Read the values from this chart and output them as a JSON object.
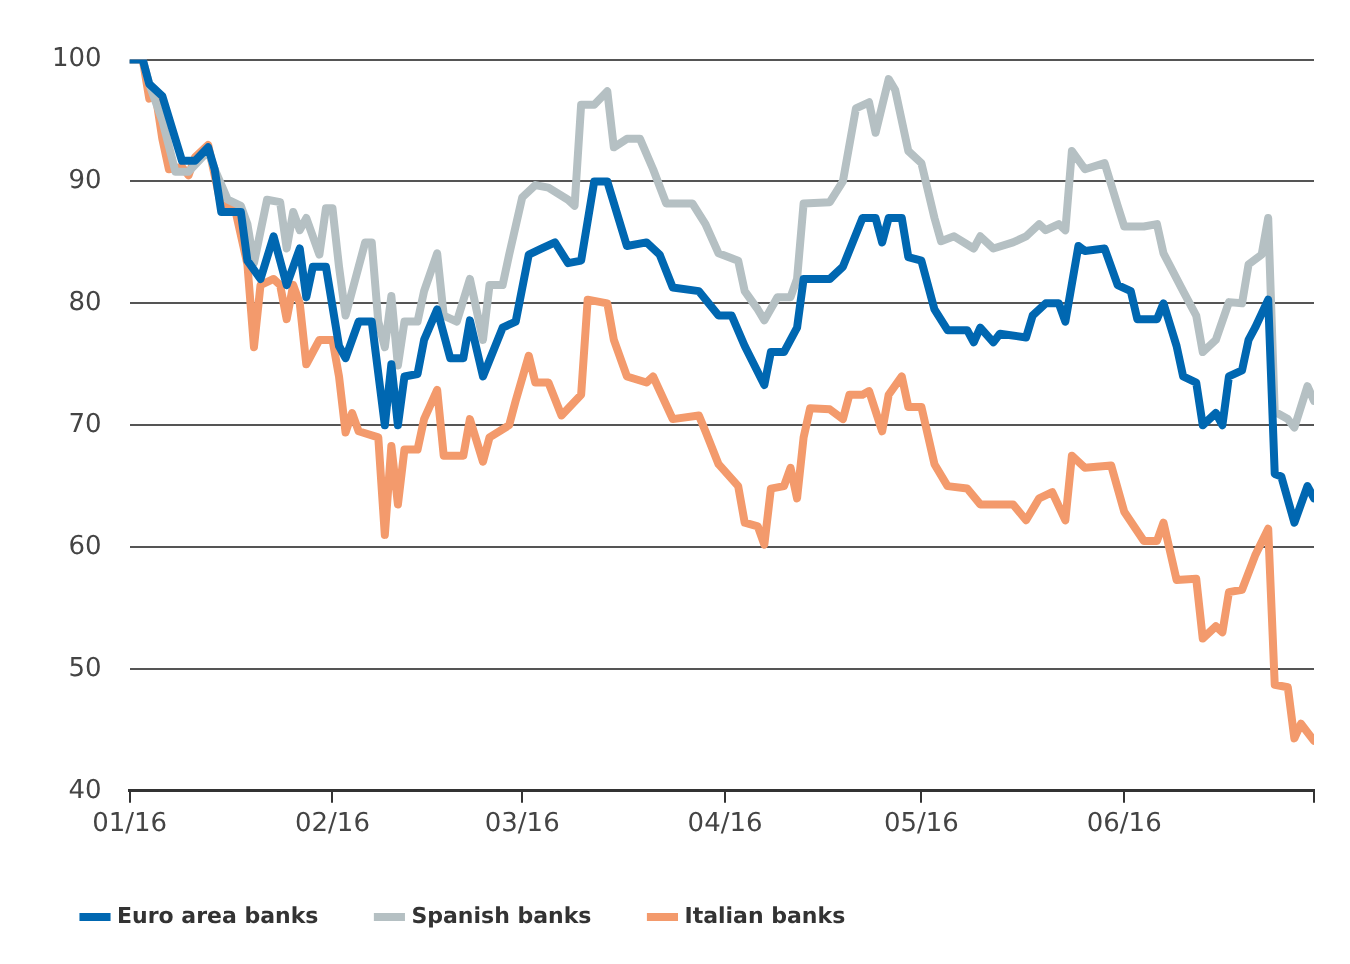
{
  "chart_data": {
    "type": "line",
    "xlim": [
      "2016-01-01",
      "2016-06-30"
    ],
    "xticks": [
      {
        "value": "2016-01-01",
        "label": "01/16"
      },
      {
        "value": "2016-02-01",
        "label": "02/16"
      },
      {
        "value": "2016-03-01",
        "label": "03/16"
      },
      {
        "value": "2016-04-01",
        "label": "04/16"
      },
      {
        "value": "2016-05-01",
        "label": "05/16"
      },
      {
        "value": "2016-06-01",
        "label": "06/16"
      },
      {
        "value": "2016-06-30",
        "label": null
      }
    ],
    "ylim": [
      40,
      100
    ],
    "yticks": [
      40,
      50,
      60,
      70,
      80,
      90,
      100
    ],
    "grid": "y",
    "legend": "bottom",
    "line_style": "solid",
    "series": [
      {
        "name": "Euro area banks",
        "color": "#0067b1",
        "x": [
          "2016-01-01",
          "2016-01-03",
          "2016-01-04",
          "2016-01-06",
          "2016-01-09",
          "2016-01-11",
          "2016-01-13",
          "2016-01-14",
          "2016-01-15",
          "2016-01-18",
          "2016-01-19",
          "2016-01-21",
          "2016-01-23",
          "2016-01-25",
          "2016-01-27",
          "2016-01-28",
          "2016-01-29",
          "2016-01-31",
          "2016-02-02",
          "2016-02-03",
          "2016-02-05",
          "2016-02-07",
          "2016-02-09",
          "2016-02-10",
          "2016-02-11",
          "2016-02-12",
          "2016-02-14",
          "2016-02-15",
          "2016-02-17",
          "2016-02-19",
          "2016-02-21",
          "2016-02-22",
          "2016-02-24",
          "2016-02-27",
          "2016-02-29",
          "2016-03-02",
          "2016-03-04",
          "2016-03-06",
          "2016-03-08",
          "2016-03-10",
          "2016-03-12",
          "2016-03-14",
          "2016-03-17",
          "2016-03-20",
          "2016-03-22",
          "2016-03-24",
          "2016-03-28",
          "2016-03-31",
          "2016-04-02",
          "2016-04-04",
          "2016-04-07",
          "2016-04-08",
          "2016-04-10",
          "2016-04-12",
          "2016-04-13",
          "2016-04-17",
          "2016-04-19",
          "2016-04-22",
          "2016-04-24",
          "2016-04-25",
          "2016-04-26",
          "2016-04-28",
          "2016-04-29",
          "2016-05-01",
          "2016-05-03",
          "2016-05-05",
          "2016-05-08",
          "2016-05-09",
          "2016-05-10",
          "2016-05-12",
          "2016-05-13",
          "2016-05-17",
          "2016-05-18",
          "2016-05-20",
          "2016-05-22",
          "2016-05-23",
          "2016-05-25",
          "2016-05-26",
          "2016-05-29",
          "2016-05-31",
          "2016-06-02",
          "2016-06-03",
          "2016-06-06",
          "2016-06-07",
          "2016-06-09",
          "2016-06-10",
          "2016-06-12",
          "2016-06-13",
          "2016-06-15",
          "2016-06-16",
          "2016-06-17",
          "2016-06-19",
          "2016-06-20",
          "2016-06-21",
          "2016-06-23",
          "2016-06-24",
          "2016-06-25",
          "2016-06-27",
          "2016-06-29",
          "2016-06-30"
        ],
        "values": [
          100,
          100,
          98,
          97,
          91.7,
          91.7,
          92.8,
          91,
          87.5,
          87.5,
          83.5,
          82,
          85.5,
          81.5,
          84.5,
          80.5,
          83,
          83,
          76.5,
          75.5,
          78.5,
          78.5,
          70,
          75,
          70,
          74,
          74.2,
          77,
          79.5,
          75.5,
          75.5,
          78.6,
          74,
          78,
          78.5,
          84,
          84.5,
          85,
          83.3,
          83.5,
          90,
          90,
          84.7,
          85,
          84,
          81.3,
          81,
          79,
          79,
          76.5,
          73.3,
          76,
          76,
          78,
          82,
          82,
          83,
          87,
          87,
          85,
          87,
          87,
          83.8,
          83.5,
          79.5,
          77.8,
          77.8,
          76.8,
          78,
          76.8,
          77.5,
          77.2,
          79,
          80,
          80,
          78.5,
          84.7,
          84.3,
          84.5,
          81.5,
          81,
          78.7,
          78.7,
          80,
          76.5,
          74,
          73.5,
          70,
          71,
          70,
          74,
          74.5,
          77,
          78,
          80.3,
          66,
          65.8,
          62,
          65,
          64
        ]
      },
      {
        "name": "Spanish banks",
        "color": "#b5c0c3",
        "x": [
          "2016-01-01",
          "2016-01-03",
          "2016-01-04",
          "2016-01-06",
          "2016-01-08",
          "2016-01-10",
          "2016-01-13",
          "2016-01-14",
          "2016-01-16",
          "2016-01-18",
          "2016-01-19",
          "2016-01-20",
          "2016-01-22",
          "2016-01-24",
          "2016-01-25",
          "2016-01-26",
          "2016-01-27",
          "2016-01-28",
          "2016-01-30",
          "2016-01-31",
          "2016-02-01",
          "2016-02-02",
          "2016-02-03",
          "2016-02-05",
          "2016-02-06",
          "2016-02-07",
          "2016-02-08",
          "2016-02-09",
          "2016-02-10",
          "2016-02-11",
          "2016-02-12",
          "2016-02-14",
          "2016-02-15",
          "2016-02-17",
          "2016-02-18",
          "2016-02-20",
          "2016-02-22",
          "2016-02-24",
          "2016-02-25",
          "2016-02-27",
          "2016-02-28",
          "2016-03-01",
          "2016-03-03",
          "2016-03-05",
          "2016-03-08",
          "2016-03-09",
          "2016-03-10",
          "2016-03-12",
          "2016-03-14",
          "2016-03-15",
          "2016-03-17",
          "2016-03-19",
          "2016-03-21",
          "2016-03-23",
          "2016-03-27",
          "2016-03-29",
          "2016-03-31",
          "2016-04-03",
          "2016-04-04",
          "2016-04-06",
          "2016-04-07",
          "2016-04-09",
          "2016-04-11",
          "2016-04-12",
          "2016-04-13",
          "2016-04-17",
          "2016-04-19",
          "2016-04-21",
          "2016-04-23",
          "2016-04-24",
          "2016-04-26",
          "2016-04-27",
          "2016-04-29",
          "2016-05-01",
          "2016-05-03",
          "2016-05-04",
          "2016-05-06",
          "2016-05-09",
          "2016-05-10",
          "2016-05-12",
          "2016-05-15",
          "2016-05-17",
          "2016-05-19",
          "2016-05-20",
          "2016-05-22",
          "2016-05-23",
          "2016-05-24",
          "2016-05-26",
          "2016-05-29",
          "2016-05-31",
          "2016-06-01",
          "2016-06-04",
          "2016-06-06",
          "2016-06-07",
          "2016-06-10",
          "2016-06-12",
          "2016-06-13",
          "2016-06-15",
          "2016-06-17",
          "2016-06-19",
          "2016-06-20",
          "2016-06-22",
          "2016-06-23",
          "2016-06-24",
          "2016-06-26",
          "2016-06-27",
          "2016-06-29",
          "2016-06-30"
        ],
        "values": [
          100,
          100,
          98,
          95,
          90.8,
          90.8,
          92.5,
          91,
          88.5,
          88,
          86.5,
          83.3,
          88.5,
          88.3,
          84.5,
          87.5,
          86,
          87,
          84,
          87.8,
          87.8,
          83,
          79,
          83,
          85,
          85,
          78.5,
          76.4,
          80.6,
          74.9,
          78.5,
          78.5,
          81,
          84.1,
          79,
          78.5,
          82,
          77,
          81.5,
          81.5,
          84,
          88.7,
          89.7,
          89.5,
          88.5,
          88,
          96.3,
          96.3,
          97.4,
          92.8,
          93.5,
          93.5,
          91,
          88.2,
          88.2,
          86.5,
          84.1,
          83.5,
          81,
          79.5,
          78.6,
          80.5,
          80.5,
          82,
          88.2,
          88.3,
          90,
          96,
          96.5,
          94,
          98.4,
          97.5,
          92.5,
          91.5,
          87,
          85.1,
          85.5,
          84.5,
          85.5,
          84.5,
          85,
          85.5,
          86.5,
          86,
          86.5,
          86,
          92.5,
          91,
          91.5,
          88,
          86.3,
          86.3,
          86.5,
          84.1,
          81,
          79,
          76,
          77,
          80.1,
          80,
          83.2,
          84,
          87,
          71.1,
          70.5,
          69.8,
          73.2,
          72
        ]
      },
      {
        "name": "Italian banks",
        "color": "#f39a6c",
        "x": [
          "2016-01-01",
          "2016-01-03",
          "2016-01-04",
          "2016-01-05",
          "2016-01-06",
          "2016-01-07",
          "2016-01-09",
          "2016-01-10",
          "2016-01-11",
          "2016-01-13",
          "2016-01-14",
          "2016-01-15",
          "2016-01-17",
          "2016-01-19",
          "2016-01-20",
          "2016-01-21",
          "2016-01-23",
          "2016-01-24",
          "2016-01-25",
          "2016-01-26",
          "2016-01-27",
          "2016-01-28",
          "2016-01-30",
          "2016-02-01",
          "2016-02-02",
          "2016-02-03",
          "2016-02-04",
          "2016-02-05",
          "2016-02-08",
          "2016-02-09",
          "2016-02-10",
          "2016-02-11",
          "2016-02-12",
          "2016-02-14",
          "2016-02-15",
          "2016-02-17",
          "2016-02-18",
          "2016-02-21",
          "2016-02-22",
          "2016-02-24",
          "2016-02-25",
          "2016-02-28",
          "2016-02-29",
          "2016-03-02",
          "2016-03-03",
          "2016-03-05",
          "2016-03-07",
          "2016-03-10",
          "2016-03-11",
          "2016-03-14",
          "2016-03-15",
          "2016-03-17",
          "2016-03-20",
          "2016-03-21",
          "2016-03-24",
          "2016-03-28",
          "2016-03-29",
          "2016-03-31",
          "2016-04-03",
          "2016-04-04",
          "2016-04-06",
          "2016-04-07",
          "2016-04-08",
          "2016-04-10",
          "2016-04-11",
          "2016-04-12",
          "2016-04-13",
          "2016-04-14",
          "2016-04-17",
          "2016-04-19",
          "2016-04-20",
          "2016-04-22",
          "2016-04-23",
          "2016-04-25",
          "2016-04-26",
          "2016-04-28",
          "2016-04-29",
          "2016-05-01",
          "2016-05-03",
          "2016-05-05",
          "2016-05-08",
          "2016-05-10",
          "2016-05-12",
          "2016-05-15",
          "2016-05-17",
          "2016-05-19",
          "2016-05-21",
          "2016-05-23",
          "2016-05-24",
          "2016-05-26",
          "2016-05-30",
          "2016-06-01",
          "2016-06-04",
          "2016-06-06",
          "2016-06-07",
          "2016-06-09",
          "2016-06-12",
          "2016-06-13",
          "2016-06-15",
          "2016-06-16",
          "2016-06-17",
          "2016-06-19",
          "2016-06-21",
          "2016-06-23",
          "2016-06-24",
          "2016-06-26",
          "2016-06-27",
          "2016-06-28",
          "2016-06-30"
        ],
        "values": [
          100,
          100,
          96.8,
          97,
          93.5,
          91,
          91.2,
          90.5,
          92,
          93,
          90.5,
          88,
          88,
          83.2,
          76.4,
          81.5,
          82,
          81.5,
          78.7,
          81.5,
          80,
          75,
          77,
          77,
          74,
          69.4,
          71,
          69.5,
          69,
          61,
          68.3,
          63.5,
          68,
          68,
          70.5,
          72.9,
          67.5,
          67.5,
          70.5,
          67,
          69,
          70,
          72,
          75.7,
          73.5,
          73.5,
          70.8,
          72.5,
          80.3,
          80,
          77,
          74,
          73.5,
          74,
          70.5,
          70.8,
          69.5,
          66.8,
          65,
          62,
          61.7,
          60.2,
          64.8,
          65,
          66.5,
          64,
          69,
          71.4,
          71.3,
          70.5,
          72.5,
          72.5,
          72.8,
          69.5,
          72.5,
          74,
          71.5,
          71.5,
          66.8,
          65,
          64.8,
          63.5,
          63.5,
          63.5,
          62.2,
          64,
          64.5,
          62.2,
          67.5,
          66.5,
          66.7,
          62.9,
          60.5,
          60.5,
          62,
          57.3,
          57.4,
          52.5,
          53.5,
          53,
          56.3,
          56.5,
          59.3,
          61.5,
          48.7,
          48.5,
          44.3,
          45.5,
          44.1
        ]
      }
    ]
  }
}
